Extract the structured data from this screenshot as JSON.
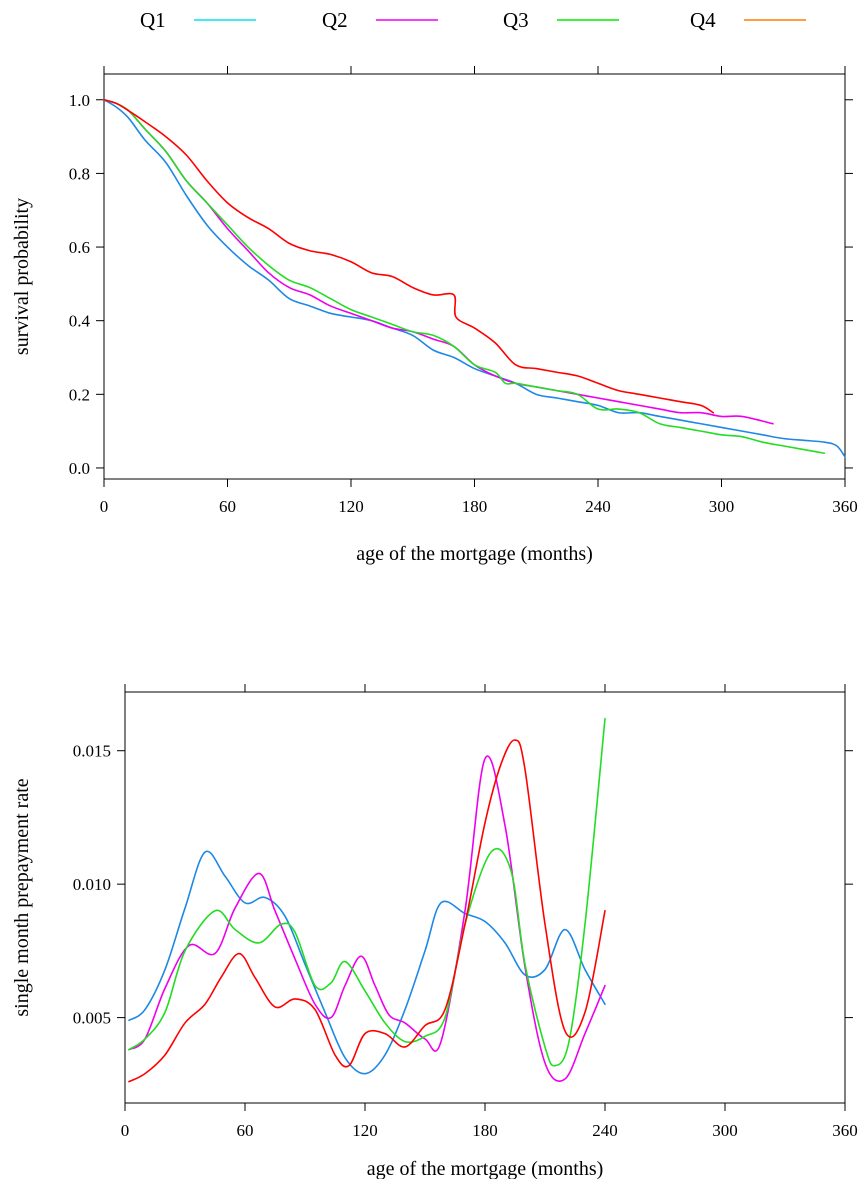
{
  "legend": [
    {
      "name": "Q1",
      "color": "#00e5ee"
    },
    {
      "name": "Q2",
      "color": "#ee00ee"
    },
    {
      "name": "Q3",
      "color": "#00ee00"
    },
    {
      "name": "Q4",
      "color": "#ff7f00"
    }
  ],
  "chart_data": [
    {
      "type": "line",
      "xlabel": "age of the mortgage (months)",
      "ylabel": "survival probability",
      "xlim": [
        0,
        360
      ],
      "ylim": [
        -0.03,
        1.07
      ],
      "xticks": [
        0,
        60,
        120,
        180,
        240,
        300,
        360
      ],
      "yticks": [
        0.0,
        0.2,
        0.4,
        0.6,
        0.8,
        1.0
      ],
      "ytick_labels": [
        "0.0",
        "0.2",
        "0.4",
        "0.6",
        "0.8",
        "1.0"
      ],
      "grid": false,
      "legend_position": "top",
      "series": [
        {
          "color": "#1e88e5",
          "x": [
            0,
            6,
            12,
            20,
            30,
            40,
            50,
            60,
            70,
            80,
            90,
            100,
            110,
            120,
            130,
            140,
            150,
            160,
            170,
            180,
            190,
            200,
            210,
            220,
            230,
            240,
            250,
            260,
            270,
            280,
            290,
            300,
            310,
            320,
            330,
            340,
            350,
            356,
            360
          ],
          "y": [
            1.0,
            0.98,
            0.95,
            0.89,
            0.83,
            0.74,
            0.66,
            0.6,
            0.55,
            0.51,
            0.46,
            0.44,
            0.42,
            0.41,
            0.4,
            0.38,
            0.36,
            0.32,
            0.3,
            0.27,
            0.25,
            0.23,
            0.2,
            0.19,
            0.18,
            0.17,
            0.15,
            0.15,
            0.14,
            0.13,
            0.12,
            0.11,
            0.1,
            0.09,
            0.08,
            0.075,
            0.07,
            0.06,
            0.03
          ]
        },
        {
          "color": "#ee00ee",
          "x": [
            0,
            6,
            12,
            20,
            30,
            40,
            50,
            60,
            70,
            80,
            90,
            100,
            110,
            120,
            130,
            140,
            150,
            160,
            170,
            180,
            190,
            200,
            210,
            220,
            230,
            240,
            250,
            260,
            270,
            280,
            290,
            300,
            310,
            325
          ],
          "y": [
            1.0,
            0.99,
            0.97,
            0.92,
            0.86,
            0.78,
            0.72,
            0.65,
            0.59,
            0.53,
            0.49,
            0.47,
            0.44,
            0.42,
            0.4,
            0.38,
            0.37,
            0.35,
            0.33,
            0.28,
            0.25,
            0.23,
            0.22,
            0.21,
            0.2,
            0.19,
            0.18,
            0.17,
            0.16,
            0.15,
            0.15,
            0.14,
            0.14,
            0.12
          ]
        },
        {
          "color": "#22dd22",
          "x": [
            0,
            6,
            12,
            20,
            30,
            40,
            50,
            60,
            70,
            80,
            90,
            100,
            110,
            120,
            130,
            140,
            150,
            160,
            170,
            180,
            190,
            195,
            200,
            210,
            220,
            230,
            240,
            250,
            260,
            270,
            280,
            290,
            300,
            310,
            320,
            330,
            340,
            350
          ],
          "y": [
            1.0,
            0.99,
            0.97,
            0.92,
            0.86,
            0.78,
            0.72,
            0.66,
            0.6,
            0.55,
            0.51,
            0.49,
            0.46,
            0.43,
            0.41,
            0.39,
            0.37,
            0.36,
            0.33,
            0.28,
            0.26,
            0.23,
            0.23,
            0.22,
            0.21,
            0.2,
            0.16,
            0.16,
            0.15,
            0.12,
            0.11,
            0.1,
            0.09,
            0.085,
            0.07,
            0.06,
            0.05,
            0.04
          ]
        },
        {
          "color": "#ff0000",
          "x": [
            0,
            6,
            12,
            20,
            30,
            40,
            50,
            60,
            70,
            80,
            90,
            100,
            110,
            120,
            130,
            140,
            150,
            160,
            170,
            171,
            180,
            190,
            200,
            210,
            220,
            230,
            240,
            250,
            260,
            270,
            280,
            290,
            296
          ],
          "y": [
            1.0,
            0.99,
            0.97,
            0.94,
            0.9,
            0.85,
            0.78,
            0.72,
            0.68,
            0.65,
            0.61,
            0.59,
            0.58,
            0.56,
            0.53,
            0.52,
            0.49,
            0.47,
            0.47,
            0.41,
            0.38,
            0.34,
            0.28,
            0.27,
            0.26,
            0.25,
            0.23,
            0.21,
            0.2,
            0.19,
            0.18,
            0.17,
            0.15
          ]
        }
      ]
    },
    {
      "type": "line",
      "xlabel": "age of the mortgage (months)",
      "ylabel": "single month prepayment rate",
      "xlim": [
        0,
        360
      ],
      "ylim": [
        0.0018,
        0.0172
      ],
      "xticks": [
        0,
        60,
        120,
        180,
        240,
        300,
        360
      ],
      "yticks": [
        0.005,
        0.01,
        0.015
      ],
      "ytick_labels": [
        "0.005",
        "0.010",
        "0.015"
      ],
      "grid": false,
      "series": [
        {
          "color": "#1e88e5",
          "x": [
            2,
            10,
            20,
            30,
            40,
            50,
            60,
            70,
            80,
            90,
            100,
            110,
            120,
            130,
            140,
            150,
            158,
            170,
            180,
            190,
            200,
            210,
            220,
            230,
            240
          ],
          "y": [
            0.0049,
            0.0053,
            0.0068,
            0.0091,
            0.0112,
            0.0103,
            0.0093,
            0.0095,
            0.0088,
            0.007,
            0.0052,
            0.0035,
            0.0029,
            0.0036,
            0.0053,
            0.0075,
            0.0093,
            0.0089,
            0.0086,
            0.0078,
            0.0066,
            0.0068,
            0.0083,
            0.0068,
            0.0055
          ]
        },
        {
          "color": "#ee00ee",
          "x": [
            2,
            10,
            20,
            32,
            45,
            55,
            67,
            75,
            85,
            95,
            103,
            110,
            118,
            125,
            132,
            140,
            150,
            158,
            170,
            180,
            190,
            200,
            210,
            220,
            230,
            240
          ],
          "y": [
            0.0038,
            0.0042,
            0.0061,
            0.0077,
            0.0074,
            0.0091,
            0.0104,
            0.009,
            0.0072,
            0.0055,
            0.005,
            0.0062,
            0.0073,
            0.0062,
            0.0051,
            0.0048,
            0.0042,
            0.0041,
            0.009,
            0.0147,
            0.0122,
            0.0069,
            0.0033,
            0.0027,
            0.0044,
            0.0062
          ]
        },
        {
          "color": "#22dd22",
          "x": [
            2,
            10,
            20,
            30,
            45,
            55,
            67,
            78,
            85,
            95,
            103,
            110,
            120,
            130,
            140,
            150,
            160,
            170,
            183,
            193,
            200,
            210,
            215,
            222,
            230,
            240
          ],
          "y": [
            0.0038,
            0.0042,
            0.0052,
            0.0075,
            0.009,
            0.0083,
            0.0078,
            0.0085,
            0.0082,
            0.0062,
            0.0063,
            0.0071,
            0.006,
            0.0048,
            0.0041,
            0.0043,
            0.005,
            0.0085,
            0.0112,
            0.0105,
            0.007,
            0.0039,
            0.0032,
            0.0041,
            0.0085,
            0.0162
          ]
        },
        {
          "color": "#ff0000",
          "x": [
            2,
            10,
            20,
            30,
            40,
            48,
            57,
            65,
            75,
            85,
            95,
            105,
            112,
            120,
            130,
            140,
            150,
            160,
            170,
            180,
            188,
            195,
            200,
            210,
            220,
            230,
            240
          ],
          "y": [
            0.0026,
            0.0029,
            0.0036,
            0.0048,
            0.0055,
            0.0065,
            0.0074,
            0.0065,
            0.0054,
            0.0057,
            0.0053,
            0.0036,
            0.0032,
            0.0044,
            0.0044,
            0.0039,
            0.0047,
            0.0053,
            0.0085,
            0.0123,
            0.0145,
            0.0154,
            0.0143,
            0.0085,
            0.0045,
            0.0052,
            0.009
          ]
        }
      ]
    }
  ]
}
